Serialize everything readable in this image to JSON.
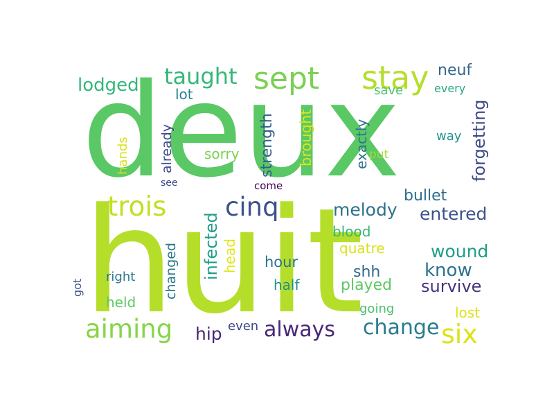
{
  "words": [
    {
      "text": "deux",
      "color": "#5ac864"
    },
    {
      "text": "huit",
      "color": "#b5de2b"
    },
    {
      "text": "sept",
      "color": "#7ad151"
    },
    {
      "text": "stay",
      "color": "#b5de2b"
    },
    {
      "text": "taught",
      "color": "#35b779"
    },
    {
      "text": "lodged",
      "color": "#35b779"
    },
    {
      "text": "neuf",
      "color": "#31688e"
    },
    {
      "text": "lot",
      "color": "#277f8e"
    },
    {
      "text": "save",
      "color": "#4ac16d"
    },
    {
      "text": "every",
      "color": "#26a784"
    },
    {
      "text": "forgetting",
      "color": "#3e4a89"
    },
    {
      "text": "brought",
      "color": "#dde318"
    },
    {
      "text": "strength",
      "color": "#35608d"
    },
    {
      "text": "exactly",
      "color": "#2c728e"
    },
    {
      "text": "already",
      "color": "#3e4989"
    },
    {
      "text": "changed",
      "color": "#2a768e"
    },
    {
      "text": "hands",
      "color": "#d8e219"
    },
    {
      "text": "sorry",
      "color": "#7ad151"
    },
    {
      "text": "way",
      "color": "#21918c"
    },
    {
      "text": "put",
      "color": "#a0da39"
    },
    {
      "text": "see",
      "color": "#3e4989"
    },
    {
      "text": "come",
      "color": "#440154"
    },
    {
      "text": "trois",
      "color": "#c2df23"
    },
    {
      "text": "cinq",
      "color": "#3b528b"
    },
    {
      "text": "melody",
      "color": "#2c728e"
    },
    {
      "text": "bullet",
      "color": "#2e6e8e"
    },
    {
      "text": "entered",
      "color": "#3b528b"
    },
    {
      "text": "infected",
      "color": "#1f9e89"
    },
    {
      "text": "head",
      "color": "#e2e418"
    },
    {
      "text": "blood",
      "color": "#35b779"
    },
    {
      "text": "quatre",
      "color": "#d8e219"
    },
    {
      "text": "wound",
      "color": "#1f9e89"
    },
    {
      "text": "hour",
      "color": "#2c728e"
    },
    {
      "text": "know",
      "color": "#2c728e"
    },
    {
      "text": "shh",
      "color": "#31688e"
    },
    {
      "text": "got",
      "color": "#3b528b"
    },
    {
      "text": "right",
      "color": "#2a788e"
    },
    {
      "text": "half",
      "color": "#21918c"
    },
    {
      "text": "played",
      "color": "#5ec962"
    },
    {
      "text": "survive",
      "color": "#46327e"
    },
    {
      "text": "held",
      "color": "#5ec962"
    },
    {
      "text": "going",
      "color": "#4ac16d"
    },
    {
      "text": "lost",
      "color": "#dde318"
    },
    {
      "text": "aiming",
      "color": "#86d549"
    },
    {
      "text": "hip",
      "color": "#482677"
    },
    {
      "text": "even",
      "color": "#3e4989"
    },
    {
      "text": "always",
      "color": "#482878"
    },
    {
      "text": "change",
      "color": "#287c8e"
    },
    {
      "text": "six",
      "color": "#dde318"
    }
  ]
}
